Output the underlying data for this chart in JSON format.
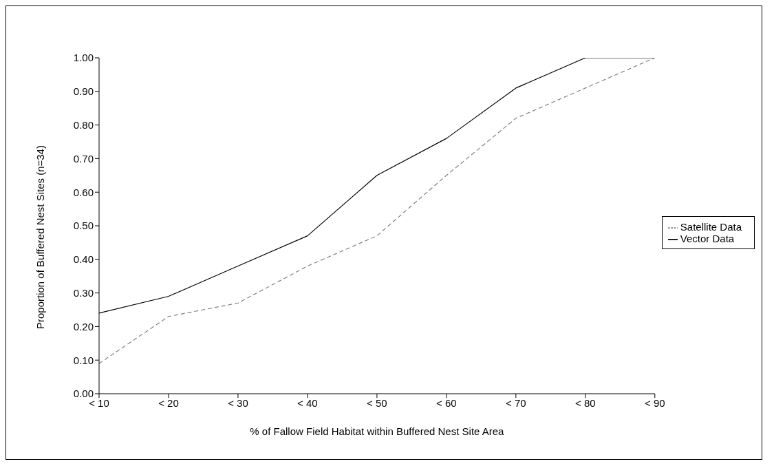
{
  "chart_data": {
    "type": "line",
    "xlabel": "% of Fallow Field Habitat within Buffered Nest Site Area",
    "ylabel": "Proportion of Buffered Nest Sites (n=34)",
    "categories": [
      "< 10",
      "< 20",
      "< 30",
      "< 40",
      "< 50",
      "< 60",
      "< 70",
      "< 80",
      "< 90"
    ],
    "series": [
      {
        "name": "Vector Data",
        "color": "#000000",
        "line_style": "solid",
        "values": [
          0.24,
          0.29,
          0.38,
          0.47,
          0.65,
          0.76,
          0.91,
          1.0,
          1.0
        ]
      },
      {
        "name": "Satellite Data",
        "color": "#808080",
        "line_style": "dashed",
        "values": [
          0.09,
          0.23,
          0.27,
          0.38,
          0.47,
          0.65,
          0.82,
          0.91,
          1.0
        ]
      }
    ],
    "ylim": [
      0,
      1
    ],
    "yticks": [
      {
        "value": 0,
        "label": "0.00"
      },
      {
        "value": 0.1,
        "label": "0.10"
      },
      {
        "value": 0.2,
        "label": "0.20"
      },
      {
        "value": 0.3,
        "label": "0.30"
      },
      {
        "value": 0.4,
        "label": "0.40"
      },
      {
        "value": 0.5,
        "label": "0.50"
      },
      {
        "value": 0.6,
        "label": "0.60"
      },
      {
        "value": 0.7,
        "label": "0.70"
      },
      {
        "value": 0.8,
        "label": "0.80"
      },
      {
        "value": 0.9,
        "label": "0.90"
      },
      {
        "value": 1,
        "label": "1.00"
      }
    ],
    "grid": false,
    "legend": "right",
    "marker": "none"
  }
}
